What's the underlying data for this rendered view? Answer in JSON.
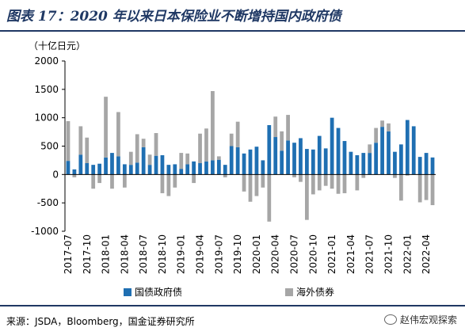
{
  "header": {
    "title": "图表 17：2020 年以来日本保险业不断增持国内政府债"
  },
  "footer": {
    "source": "来源：JSDA，Bloomberg，国金证券研究所",
    "watermark": "赵伟宏观探索"
  },
  "colors": {
    "series1": "#1f6fb2",
    "series2": "#a6a6a6",
    "accent": "#1f3864"
  },
  "chart_data": {
    "type": "bar",
    "stacked": true,
    "unit_label": "（十亿日元）",
    "ylim": [
      -1000,
      2000
    ],
    "yticks": [
      -1000,
      -500,
      0,
      500,
      1000,
      1500,
      2000
    ],
    "xtick_labels": [
      "2017-07",
      "2017-10",
      "2018-01",
      "2018-04",
      "2018-07",
      "2018-10",
      "2019-01",
      "2019-04",
      "2019-07",
      "2019-10",
      "2020-01",
      "2020-04",
      "2020-07",
      "2020-10",
      "2021-01",
      "2021-04",
      "2021-07",
      "2021-10",
      "2022-01",
      "2022-04"
    ],
    "categories": [
      "2017-07",
      "2017-08",
      "2017-09",
      "2017-10",
      "2017-11",
      "2017-12",
      "2018-01",
      "2018-02",
      "2018-03",
      "2018-04",
      "2018-05",
      "2018-06",
      "2018-07",
      "2018-08",
      "2018-09",
      "2018-10",
      "2018-11",
      "2018-12",
      "2019-01",
      "2019-02",
      "2019-03",
      "2019-04",
      "2019-05",
      "2019-06",
      "2019-07",
      "2019-08",
      "2019-09",
      "2019-10",
      "2019-11",
      "2019-12",
      "2020-01",
      "2020-02",
      "2020-03",
      "2020-04",
      "2020-05",
      "2020-06",
      "2020-07",
      "2020-08",
      "2020-09",
      "2020-10",
      "2020-11",
      "2020-12",
      "2021-01",
      "2021-02",
      "2021-03",
      "2021-04",
      "2021-05",
      "2021-06",
      "2021-07",
      "2021-08",
      "2021-09",
      "2021-10",
      "2021-11",
      "2021-12",
      "2022-01",
      "2022-02",
      "2022-03",
      "2022-04",
      "2022-05"
    ],
    "legend_position": "bottom",
    "series": [
      {
        "name": "国债政府债",
        "color": "#1f6fb2",
        "values": [
          240,
          90,
          350,
          200,
          170,
          190,
          300,
          380,
          320,
          180,
          170,
          210,
          480,
          170,
          330,
          340,
          170,
          180,
          100,
          180,
          230,
          200,
          230,
          250,
          260,
          170,
          500,
          480,
          370,
          440,
          490,
          250,
          870,
          660,
          420,
          600,
          560,
          640,
          450,
          440,
          680,
          460,
          1000,
          820,
          590,
          400,
          340,
          380,
          380,
          560,
          840,
          760,
          400,
          530,
          960,
          850,
          310,
          380,
          300
        ]
      },
      {
        "name": "海外债券",
        "color": "#a6a6a6",
        "values": [
          700,
          -50,
          500,
          450,
          -250,
          -150,
          1070,
          -250,
          780,
          -230,
          230,
          500,
          150,
          180,
          400,
          -330,
          -380,
          -230,
          280,
          190,
          -150,
          520,
          580,
          1220,
          60,
          -50,
          220,
          450,
          -300,
          -480,
          -380,
          -230,
          -830,
          360,
          340,
          450,
          -50,
          -130,
          -800,
          -350,
          -280,
          -200,
          -250,
          -340,
          -330,
          0,
          -280,
          -60,
          150,
          260,
          110,
          140,
          -60,
          -460,
          -20,
          0,
          -490,
          -450,
          -540
        ]
      }
    ]
  }
}
